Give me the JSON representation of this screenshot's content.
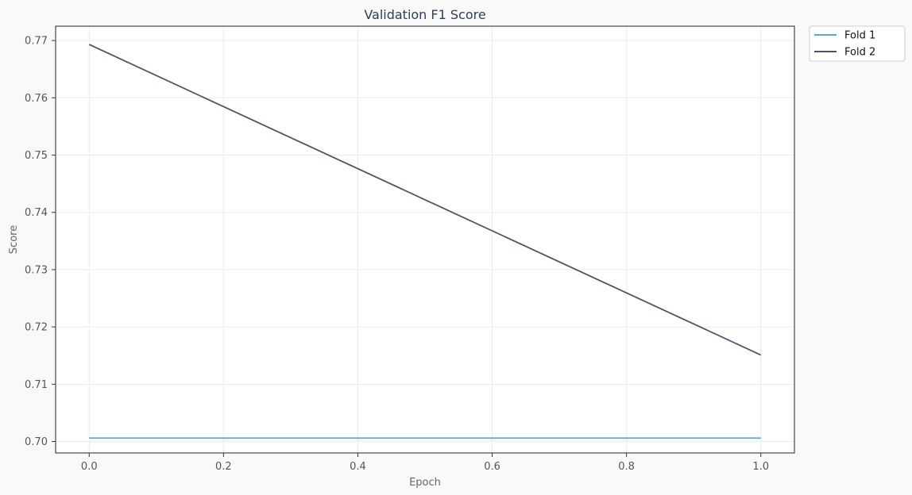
{
  "chart_data": {
    "type": "line",
    "title": "Validation F1 Score",
    "xlabel": "Epoch",
    "ylabel": "Score",
    "x": [
      0.0,
      1.0
    ],
    "xlim": [
      -0.05,
      1.05
    ],
    "ylim": [
      0.698,
      0.7725
    ],
    "xticks": [
      "0.0",
      "0.2",
      "0.4",
      "0.6",
      "0.8",
      "1.0"
    ],
    "yticks": [
      "0.70",
      "0.71",
      "0.72",
      "0.73",
      "0.74",
      "0.75",
      "0.76",
      "0.77"
    ],
    "grid": true,
    "legend_position": "outside-top-right",
    "series": [
      {
        "name": "Fold 1",
        "color": "#5aa5dc",
        "values": [
          0.7006,
          0.7006
        ]
      },
      {
        "name": "Fold 2",
        "color": "#4c5568",
        "values": [
          0.7693,
          0.7151
        ]
      }
    ]
  }
}
